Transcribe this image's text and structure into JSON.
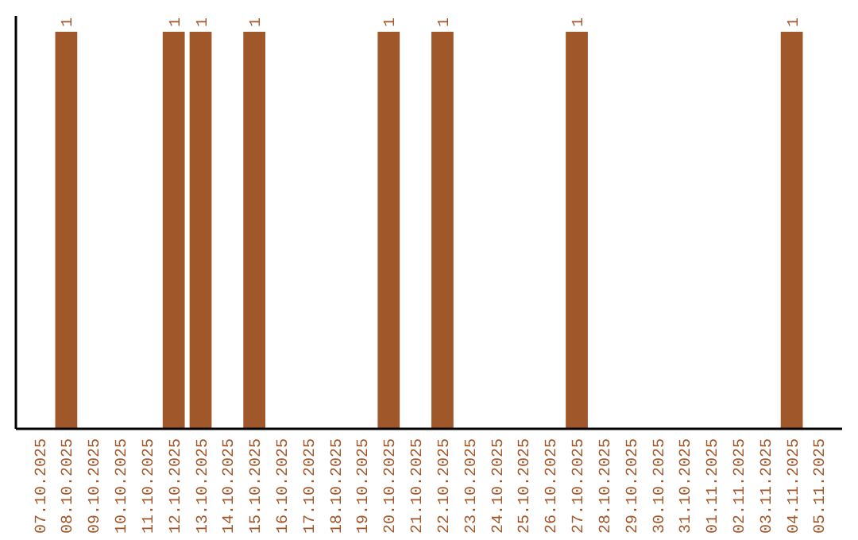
{
  "chart_data": {
    "type": "bar",
    "categories": [
      "07.10.2025",
      "08.10.2025",
      "09.10.2025",
      "10.10.2025",
      "11.10.2025",
      "12.10.2025",
      "13.10.2025",
      "14.10.2025",
      "15.10.2025",
      "16.10.2025",
      "17.10.2025",
      "18.10.2025",
      "19.10.2025",
      "20.10.2025",
      "21.10.2025",
      "22.10.2025",
      "23.10.2025",
      "24.10.2025",
      "25.10.2025",
      "26.10.2025",
      "27.10.2025",
      "28.10.2025",
      "29.10.2025",
      "30.10.2025",
      "31.10.2025",
      "01.11.2025",
      "02.11.2025",
      "03.11.2025",
      "04.11.2025",
      "05.11.2025"
    ],
    "values": [
      0,
      1,
      0,
      0,
      0,
      1,
      1,
      0,
      1,
      0,
      0,
      0,
      0,
      1,
      0,
      1,
      0,
      0,
      0,
      0,
      1,
      0,
      0,
      0,
      0,
      0,
      0,
      0,
      1,
      0
    ],
    "value_labels": [
      null,
      "1",
      null,
      null,
      null,
      "1",
      "1",
      null,
      "1",
      null,
      null,
      null,
      null,
      "1",
      null,
      "1",
      null,
      null,
      null,
      null,
      "1",
      null,
      null,
      null,
      null,
      null,
      null,
      null,
      "1",
      null
    ],
    "color": "#a0572a",
    "tick_labels": "x",
    "grid": false
  }
}
